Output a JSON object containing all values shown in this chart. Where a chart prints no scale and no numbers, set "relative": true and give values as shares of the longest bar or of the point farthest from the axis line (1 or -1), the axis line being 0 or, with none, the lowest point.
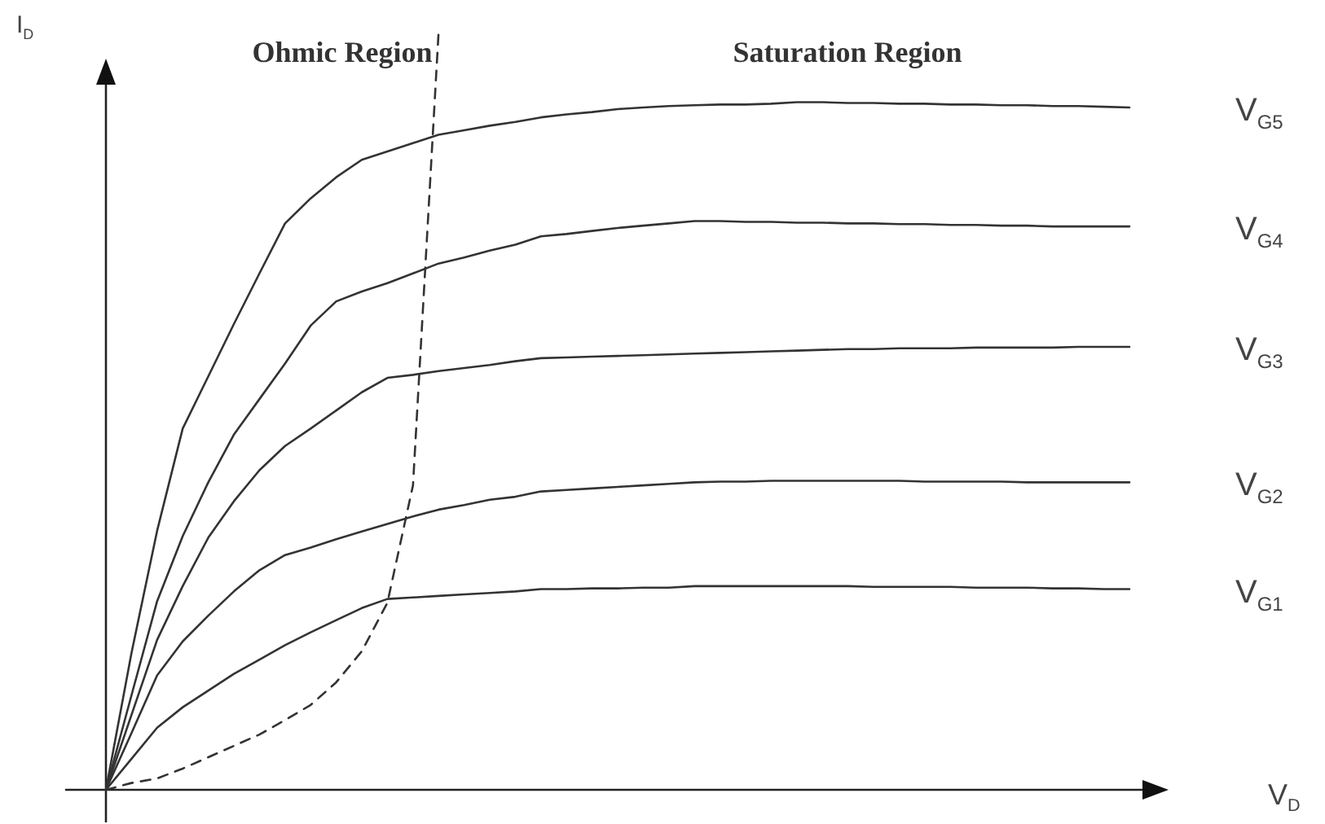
{
  "chart_data": {
    "type": "line",
    "relative": true,
    "xlabel": "V$_{D}$",
    "ylabel": "I$_{D}$",
    "tick_labels": false,
    "categories": [
      null,
      null,
      null,
      null,
      null,
      null,
      null,
      null,
      null,
      null,
      null,
      null,
      null,
      null,
      null,
      null,
      null,
      null,
      null,
      null,
      null,
      null,
      null,
      null,
      null,
      null,
      null,
      null,
      null,
      null,
      null,
      null,
      null,
      null,
      null,
      null,
      null,
      null,
      null,
      null,
      null
    ],
    "annotations": [
      "Ohmic Region",
      "Saturation Region"
    ],
    "series": [
      {
        "name": "V$_{G5}$",
        "color": "#333333",
        "values": [
          0,
          0.181,
          0.342,
          0.477,
          0.546,
          0.615,
          0.682,
          0.748,
          0.781,
          0.809,
          0.832,
          0.843,
          0.854,
          0.865,
          0.871,
          0.877,
          0.882,
          0.888,
          0.892,
          0.895,
          0.899,
          0.901,
          0.903,
          0.904,
          0.905,
          0.905,
          0.906,
          0.908,
          0.908,
          0.907,
          0.907,
          0.906,
          0.906,
          0.905,
          0.905,
          0.904,
          0.904,
          0.903,
          0.903,
          0.902,
          0.901
        ]
      },
      {
        "name": "V$_{G4}$",
        "color": "#333333",
        "values": [
          0,
          0.125,
          0.249,
          0.335,
          0.406,
          0.469,
          0.516,
          0.563,
          0.613,
          0.645,
          0.658,
          0.669,
          0.682,
          0.695,
          0.703,
          0.712,
          0.72,
          0.731,
          0.734,
          0.738,
          0.742,
          0.745,
          0.748,
          0.751,
          0.751,
          0.75,
          0.75,
          0.749,
          0.749,
          0.748,
          0.748,
          0.747,
          0.747,
          0.746,
          0.746,
          0.745,
          0.745,
          0.744,
          0.744,
          0.744,
          0.744
        ]
      },
      {
        "name": "V$_{G3}$",
        "color": "#333333",
        "values": [
          0,
          0.099,
          0.198,
          0.269,
          0.333,
          0.381,
          0.422,
          0.454,
          0.477,
          0.501,
          0.525,
          0.544,
          0.548,
          0.553,
          0.557,
          0.561,
          0.566,
          0.57,
          0.571,
          0.572,
          0.573,
          0.574,
          0.575,
          0.576,
          0.577,
          0.578,
          0.579,
          0.58,
          0.581,
          0.582,
          0.582,
          0.583,
          0.583,
          0.583,
          0.584,
          0.584,
          0.584,
          0.584,
          0.585,
          0.585,
          0.585
        ]
      },
      {
        "name": "V$_{G2}$",
        "color": "#333333",
        "values": [
          0,
          0.075,
          0.151,
          0.196,
          0.23,
          0.262,
          0.29,
          0.31,
          0.32,
          0.331,
          0.341,
          0.351,
          0.361,
          0.37,
          0.376,
          0.383,
          0.387,
          0.394,
          0.396,
          0.398,
          0.4,
          0.402,
          0.404,
          0.406,
          0.407,
          0.407,
          0.408,
          0.408,
          0.408,
          0.408,
          0.408,
          0.408,
          0.407,
          0.407,
          0.407,
          0.407,
          0.406,
          0.406,
          0.406,
          0.406,
          0.406
        ]
      },
      {
        "name": "V$_{G1}$",
        "color": "#333333",
        "values": [
          0,
          0.041,
          0.082,
          0.109,
          0.131,
          0.153,
          0.172,
          0.191,
          0.208,
          0.224,
          0.24,
          0.252,
          0.254,
          0.256,
          0.258,
          0.26,
          0.262,
          0.265,
          0.265,
          0.266,
          0.266,
          0.267,
          0.267,
          0.269,
          0.269,
          0.269,
          0.269,
          0.269,
          0.269,
          0.269,
          0.268,
          0.268,
          0.268,
          0.268,
          0.267,
          0.267,
          0.267,
          0.266,
          0.266,
          0.265,
          0.265
        ]
      },
      {
        "color": "#333333",
        "line_style": "dashed",
        "values": [
          0,
          0.009,
          0.015,
          0.028,
          0.043,
          0.058,
          0.073,
          0.092,
          0.112,
          0.142,
          0.183,
          0.247,
          0.402,
          1,
          null,
          null,
          null,
          null,
          null,
          null,
          null,
          null,
          null,
          null,
          null,
          null,
          null,
          null,
          null,
          null,
          null,
          null,
          null,
          null,
          null,
          null,
          null,
          null,
          null,
          null,
          null
        ]
      }
    ]
  }
}
